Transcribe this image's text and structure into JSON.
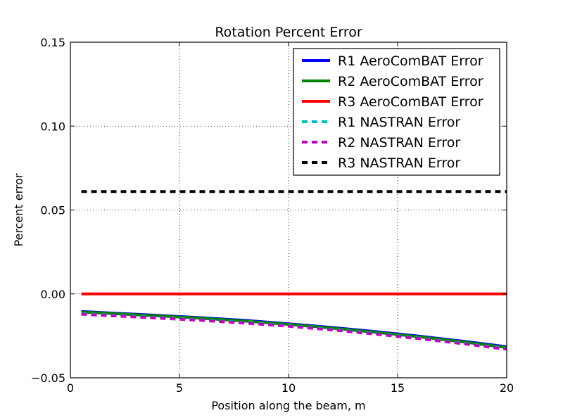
{
  "chart_data": {
    "type": "line",
    "title": "Rotation Percent Error",
    "xlabel": "Position along the beam, m",
    "ylabel": "Percent error",
    "xlim": [
      0,
      20
    ],
    "ylim": [
      -0.05,
      0.15
    ],
    "xticks": [
      0,
      5,
      10,
      15,
      20
    ],
    "xtick_labels": [
      "0",
      "5",
      "10",
      "15",
      "20"
    ],
    "yticks": [
      -0.05,
      0.0,
      0.05,
      0.1,
      0.15
    ],
    "ytick_labels": [
      "−0.05",
      "0.00",
      "0.05",
      "0.10",
      "0.15"
    ],
    "grid": true,
    "legend_position": "top-right",
    "x": [
      0.5,
      2,
      4,
      6,
      8,
      10,
      12,
      14,
      16,
      18,
      20
    ],
    "series": [
      {
        "name": "R1 AeroComBAT Error",
        "color": "#0000ff",
        "style": "solid",
        "values": [
          -0.0105,
          -0.0115,
          -0.0128,
          -0.0142,
          -0.0158,
          -0.0178,
          -0.02,
          -0.0225,
          -0.0252,
          -0.0282,
          -0.0315
        ]
      },
      {
        "name": "R2 AeroComBAT Error",
        "color": "#008000",
        "style": "solid",
        "values": [
          -0.0108,
          -0.0118,
          -0.0131,
          -0.0145,
          -0.0162,
          -0.0182,
          -0.0204,
          -0.0229,
          -0.0256,
          -0.0286,
          -0.032
        ]
      },
      {
        "name": "R3 AeroComBAT Error",
        "color": "#ff0000",
        "style": "solid",
        "values": [
          0.0,
          0.0,
          0.0,
          0.0,
          0.0,
          0.0,
          0.0,
          0.0,
          0.0,
          0.0,
          0.0
        ]
      },
      {
        "name": "R1 NASTRAN Error",
        "color": "#00bfbf",
        "style": "dashed",
        "values": [
          -0.0118,
          -0.0128,
          -0.0141,
          -0.0155,
          -0.0171,
          -0.019,
          -0.0212,
          -0.0237,
          -0.0264,
          -0.0294,
          -0.0327
        ]
      },
      {
        "name": "R2 NASTRAN Error",
        "color": "#bf00bf",
        "style": "dashed",
        "values": [
          -0.0121,
          -0.0131,
          -0.0144,
          -0.0158,
          -0.0174,
          -0.0193,
          -0.0215,
          -0.024,
          -0.0267,
          -0.0297,
          -0.033
        ]
      },
      {
        "name": "R3 NASTRAN Error",
        "color": "#000000",
        "style": "dashed",
        "values": [
          0.061,
          0.061,
          0.061,
          0.061,
          0.061,
          0.061,
          0.061,
          0.061,
          0.061,
          0.061,
          0.061
        ]
      }
    ]
  }
}
